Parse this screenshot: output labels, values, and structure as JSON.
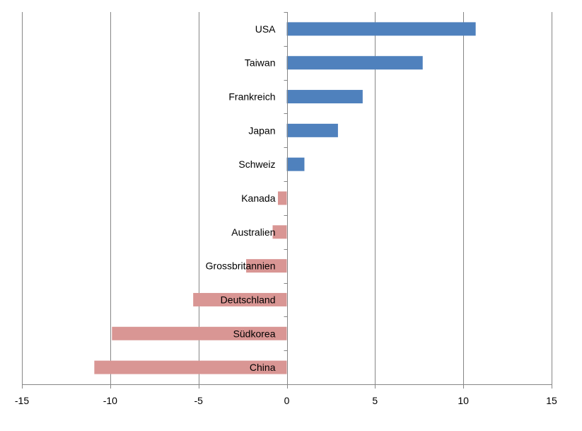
{
  "chart_data": {
    "type": "bar",
    "orientation": "horizontal",
    "categories": [
      "USA",
      "Taiwan",
      "Frankreich",
      "Japan",
      "Schweiz",
      "Kanada",
      "Australien",
      "Grossbritannien",
      "Deutschland",
      "Südkorea",
      "China"
    ],
    "values": [
      10.7,
      7.7,
      4.3,
      2.9,
      1.0,
      -0.5,
      -0.8,
      -2.3,
      -5.3,
      -9.9,
      -10.9
    ],
    "xlim": [
      -15,
      15
    ],
    "xticks": [
      -15,
      -10,
      -5,
      0,
      5,
      10,
      15
    ],
    "xtick_labels": [
      "-15",
      "-10",
      "-5",
      "0",
      "5",
      "10",
      "15"
    ],
    "grid": "vertical",
    "legend": "none",
    "colors": {
      "positive": "#4f81bd",
      "negative": "#d99694",
      "grid": "#868686",
      "axis": "#868686"
    }
  }
}
